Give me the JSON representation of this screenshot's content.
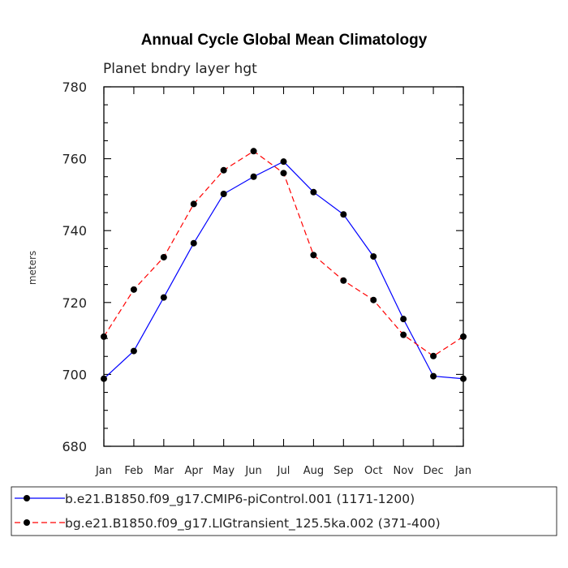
{
  "chart_data": {
    "type": "line",
    "title": "Annual Cycle Global Mean Climatology",
    "subtitle": "Planet bndry layer hgt",
    "xlabel": "",
    "ylabel": "meters",
    "categories": [
      "Jan",
      "Feb",
      "Mar",
      "Apr",
      "May",
      "Jun",
      "Jul",
      "Aug",
      "Sep",
      "Oct",
      "Nov",
      "Dec",
      "Jan"
    ],
    "ylim": [
      680,
      780
    ],
    "yticks": [
      "680",
      "700",
      "720",
      "740",
      "760",
      "780"
    ],
    "grid": false,
    "legend_position": "bottom",
    "series": [
      {
        "name": "b.e21.B1850.f09_g17.CMIP6-piControl.001 (1171-1200)",
        "color": "#0000ff",
        "dash": "solid",
        "marker": "filled-circle",
        "values": [
          698.8,
          706.5,
          721.4,
          736.5,
          750.2,
          755.0,
          759.2,
          750.7,
          744.5,
          732.8,
          715.4,
          699.5,
          698.8
        ]
      },
      {
        "name": "bg.e21.B1850.f09_g17.LIGtransient_125.5ka.002 (371-400)",
        "color": "#ff0000",
        "dash": "dashed",
        "marker": "filled-circle",
        "values": [
          710.5,
          723.6,
          732.6,
          747.4,
          756.8,
          762.1,
          756.0,
          733.2,
          726.1,
          720.7,
          711.0,
          705.1,
          710.5
        ]
      }
    ]
  }
}
